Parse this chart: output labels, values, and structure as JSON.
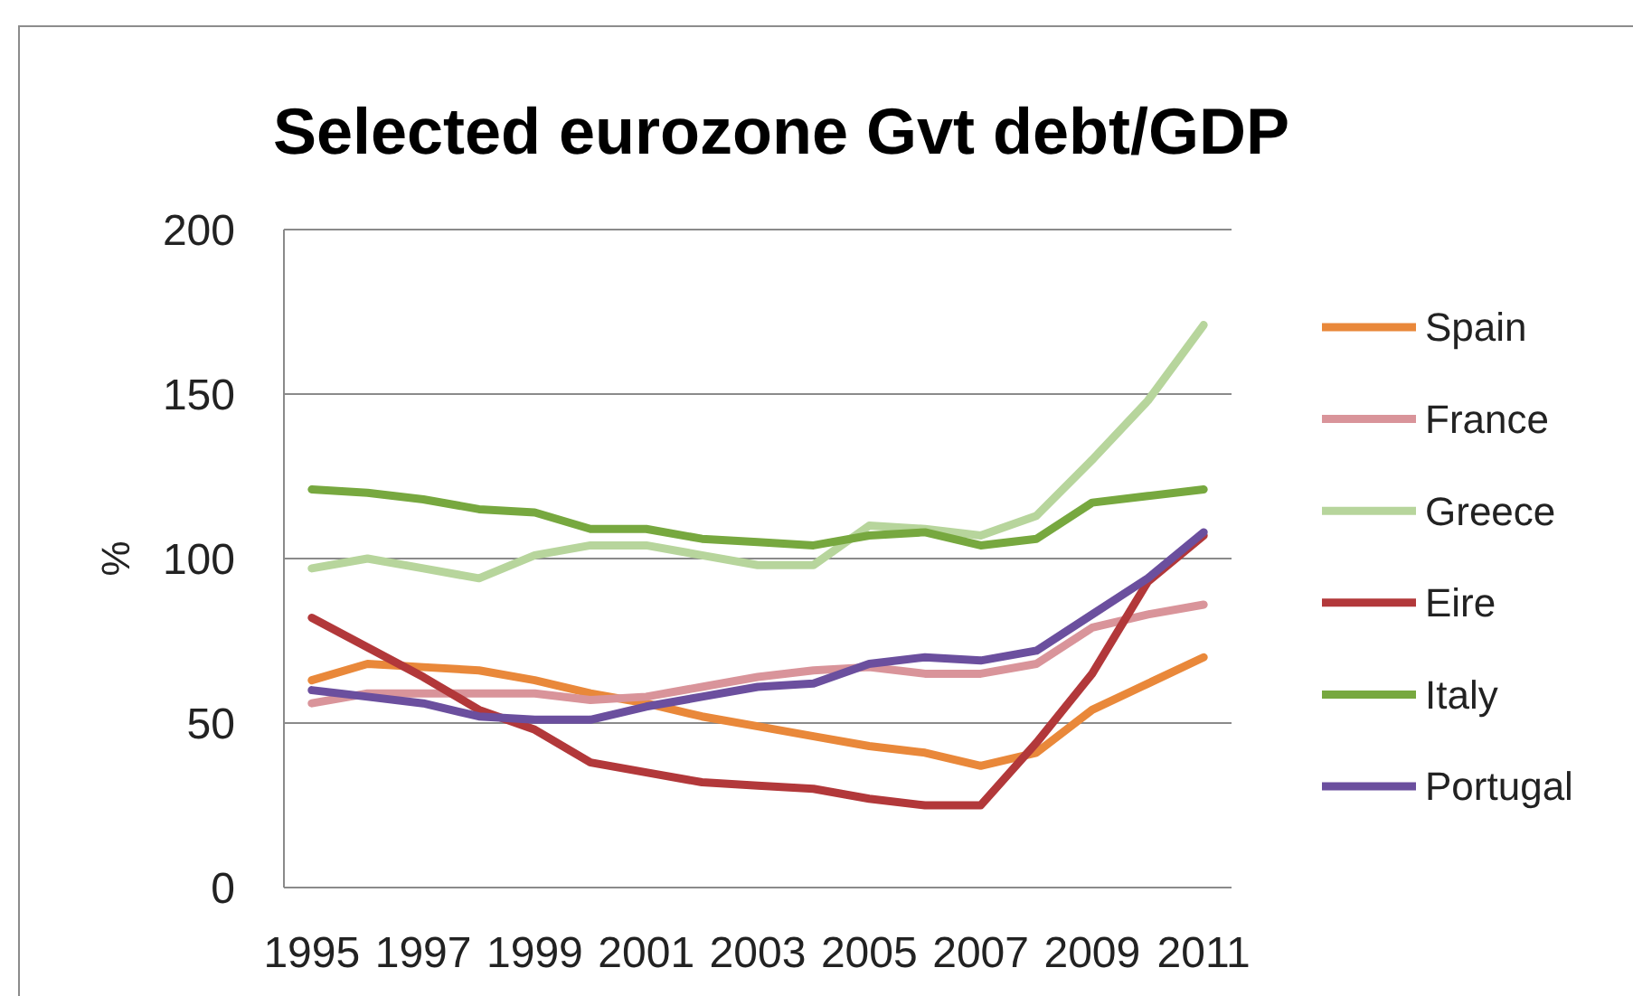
{
  "chart_data": {
    "type": "line",
    "title": "Selected eurozone Gvt debt/GDP",
    "ylabel": "%",
    "x": [
      1995,
      1996,
      1997,
      1998,
      1999,
      2000,
      2001,
      2002,
      2003,
      2004,
      2005,
      2006,
      2007,
      2008,
      2009,
      2010,
      2011
    ],
    "xlim": [
      1994.5,
      2011.5
    ],
    "xticks": [
      1995,
      1997,
      1999,
      2001,
      2003,
      2005,
      2007,
      2009,
      2011
    ],
    "ylim": [
      0,
      200
    ],
    "yticks": [
      0,
      50,
      100,
      150,
      200
    ],
    "grid": "y",
    "legend": "right",
    "marker": "none",
    "line_style": "solid",
    "series": [
      {
        "name": "Spain",
        "color": "#e9883a",
        "values": [
          63,
          68,
          67,
          66,
          63,
          59,
          56,
          52,
          49,
          46,
          43,
          41,
          37,
          41,
          54,
          62,
          70
        ]
      },
      {
        "name": "France",
        "color": "#d9949a",
        "values": [
          56,
          59,
          59,
          59,
          59,
          57,
          58,
          61,
          64,
          66,
          67,
          65,
          65,
          68,
          79,
          83,
          86
        ]
      },
      {
        "name": "Greece",
        "color": "#b7d59c",
        "values": [
          97,
          100,
          97,
          94,
          101,
          104,
          104,
          101,
          98,
          98,
          110,
          109,
          107,
          113,
          130,
          148,
          171
        ]
      },
      {
        "name": "Eire",
        "color": "#b2383a",
        "values": [
          82,
          73,
          64,
          54,
          48,
          38,
          35,
          32,
          31,
          30,
          27,
          25,
          25,
          44,
          65,
          93,
          107
        ]
      },
      {
        "name": "Italy",
        "color": "#77a83f",
        "values": [
          121,
          120,
          118,
          115,
          114,
          109,
          109,
          106,
          105,
          104,
          107,
          108,
          104,
          106,
          117,
          119,
          121
        ]
      },
      {
        "name": "Portugal",
        "color": "#6b4f9e",
        "values": [
          60,
          58,
          56,
          52,
          51,
          51,
          55,
          58,
          61,
          62,
          68,
          70,
          69,
          72,
          83,
          94,
          108
        ]
      }
    ]
  }
}
